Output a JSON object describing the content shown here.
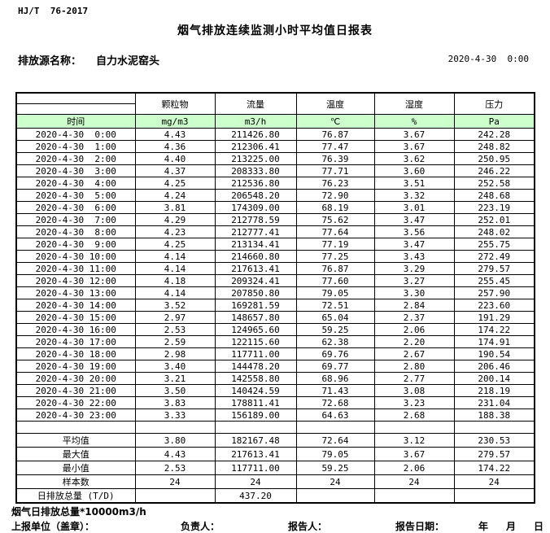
{
  "meta": {
    "standard": "HJ/T  76-2017",
    "title": "烟气排放连续监测小时平均值日报表",
    "source_label": "排放源名称：",
    "source_name": "自力水泥窑头",
    "datetime": "2020-4-30  0:00"
  },
  "table": {
    "time_label": "时间",
    "columns": [
      "颗粒物",
      "流量",
      "温度",
      "湿度",
      "压力"
    ],
    "units": [
      "mg/m3",
      "m3/h",
      "℃",
      "%",
      "Pa"
    ],
    "rows": [
      [
        "2020-4-30  0:00",
        "4.43",
        "211426.80",
        "76.87",
        "3.67",
        "242.28"
      ],
      [
        "2020-4-30  1:00",
        "4.36",
        "212306.41",
        "77.47",
        "3.67",
        "248.82"
      ],
      [
        "2020-4-30  2:00",
        "4.40",
        "213225.00",
        "76.39",
        "3.62",
        "250.95"
      ],
      [
        "2020-4-30  3:00",
        "4.37",
        "208333.80",
        "77.71",
        "3.60",
        "246.22"
      ],
      [
        "2020-4-30  4:00",
        "4.25",
        "212536.80",
        "76.23",
        "3.51",
        "252.58"
      ],
      [
        "2020-4-30  5:00",
        "4.24",
        "206548.20",
        "72.90",
        "3.32",
        "248.68"
      ],
      [
        "2020-4-30  6:00",
        "3.81",
        "174309.00",
        "68.19",
        "3.01",
        "223.19"
      ],
      [
        "2020-4-30  7:00",
        "4.29",
        "212778.59",
        "75.62",
        "3.47",
        "252.01"
      ],
      [
        "2020-4-30  8:00",
        "4.23",
        "212777.41",
        "77.64",
        "3.56",
        "248.02"
      ],
      [
        "2020-4-30  9:00",
        "4.25",
        "213134.41",
        "77.19",
        "3.47",
        "255.75"
      ],
      [
        "2020-4-30 10:00",
        "4.14",
        "214660.80",
        "77.25",
        "3.43",
        "272.49"
      ],
      [
        "2020-4-30 11:00",
        "4.14",
        "217613.41",
        "76.87",
        "3.29",
        "279.57"
      ],
      [
        "2020-4-30 12:00",
        "4.18",
        "209324.41",
        "77.60",
        "3.27",
        "255.45"
      ],
      [
        "2020-4-30 13:00",
        "4.14",
        "207850.80",
        "79.05",
        "3.30",
        "257.90"
      ],
      [
        "2020-4-30 14:00",
        "3.52",
        "169281.59",
        "72.51",
        "2.84",
        "223.60"
      ],
      [
        "2020-4-30 15:00",
        "2.97",
        "148657.80",
        "65.04",
        "2.37",
        "191.29"
      ],
      [
        "2020-4-30 16:00",
        "2.53",
        "124965.60",
        "59.25",
        "2.06",
        "174.22"
      ],
      [
        "2020-4-30 17:00",
        "2.59",
        "122115.60",
        "62.38",
        "2.20",
        "174.91"
      ],
      [
        "2020-4-30 18:00",
        "2.98",
        "117711.00",
        "69.76",
        "2.67",
        "190.54"
      ],
      [
        "2020-4-30 19:00",
        "3.40",
        "144478.20",
        "69.77",
        "2.80",
        "206.46"
      ],
      [
        "2020-4-30 20:00",
        "3.21",
        "142558.80",
        "68.96",
        "2.77",
        "200.14"
      ],
      [
        "2020-4-30 21:00",
        "3.50",
        "140424.59",
        "71.43",
        "3.08",
        "218.19"
      ],
      [
        "2020-4-30 22:00",
        "3.83",
        "178811.41",
        "72.68",
        "3.23",
        "231.04"
      ],
      [
        "2020-4-30 23:00",
        "3.33",
        "156189.00",
        "64.63",
        "2.68",
        "188.38"
      ]
    ],
    "summary": [
      [
        "平均值",
        "3.80",
        "182167.48",
        "72.64",
        "3.12",
        "230.53"
      ],
      [
        "最大值",
        "4.43",
        "217613.41",
        "79.05",
        "3.67",
        "279.57"
      ],
      [
        "最小值",
        "2.53",
        "117711.00",
        "59.25",
        "2.06",
        "174.22"
      ],
      [
        "样本数",
        "24",
        "24",
        "24",
        "24",
        "24"
      ],
      [
        "日排放总量 (T/D)",
        "",
        "437.20",
        "",
        "",
        ""
      ]
    ]
  },
  "footer": {
    "note": "烟气日排放总量*10000m3/h",
    "report_unit_label": "上报单位（盖章）：",
    "responsible_label": "负责人：",
    "reporter_label": "报告人：",
    "report_date_label": "报告日期：",
    "year_label": "年",
    "month_label": "月",
    "day_label": "日"
  },
  "colors": {
    "unit_row_bg": "#ccffcc",
    "border": "#000000",
    "background": "#ffffff"
  }
}
